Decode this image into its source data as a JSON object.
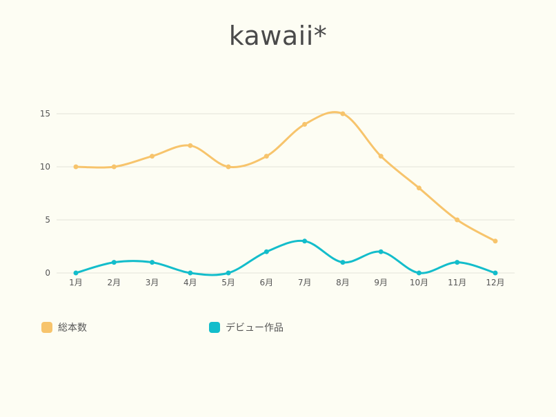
{
  "chart_data": {
    "type": "line",
    "title": "kawaii*",
    "categories": [
      "1月",
      "2月",
      "3月",
      "4月",
      "5月",
      "6月",
      "7月",
      "8月",
      "9月",
      "10月",
      "11月",
      "12月"
    ],
    "yticks": [
      0,
      5,
      10,
      15
    ],
    "ylim": [
      0,
      15
    ],
    "grid": true,
    "legend_position": "bottom-left",
    "series": [
      {
        "name": "総本数",
        "color": "#f7c46c",
        "values": [
          10,
          10,
          11,
          12,
          10,
          11,
          14,
          15,
          11,
          8,
          5,
          3
        ]
      },
      {
        "name": "デビュー作品",
        "color": "#13bdcb",
        "values": [
          0,
          1,
          1,
          0,
          0,
          2,
          3,
          1,
          2,
          0,
          1,
          0
        ]
      }
    ]
  }
}
